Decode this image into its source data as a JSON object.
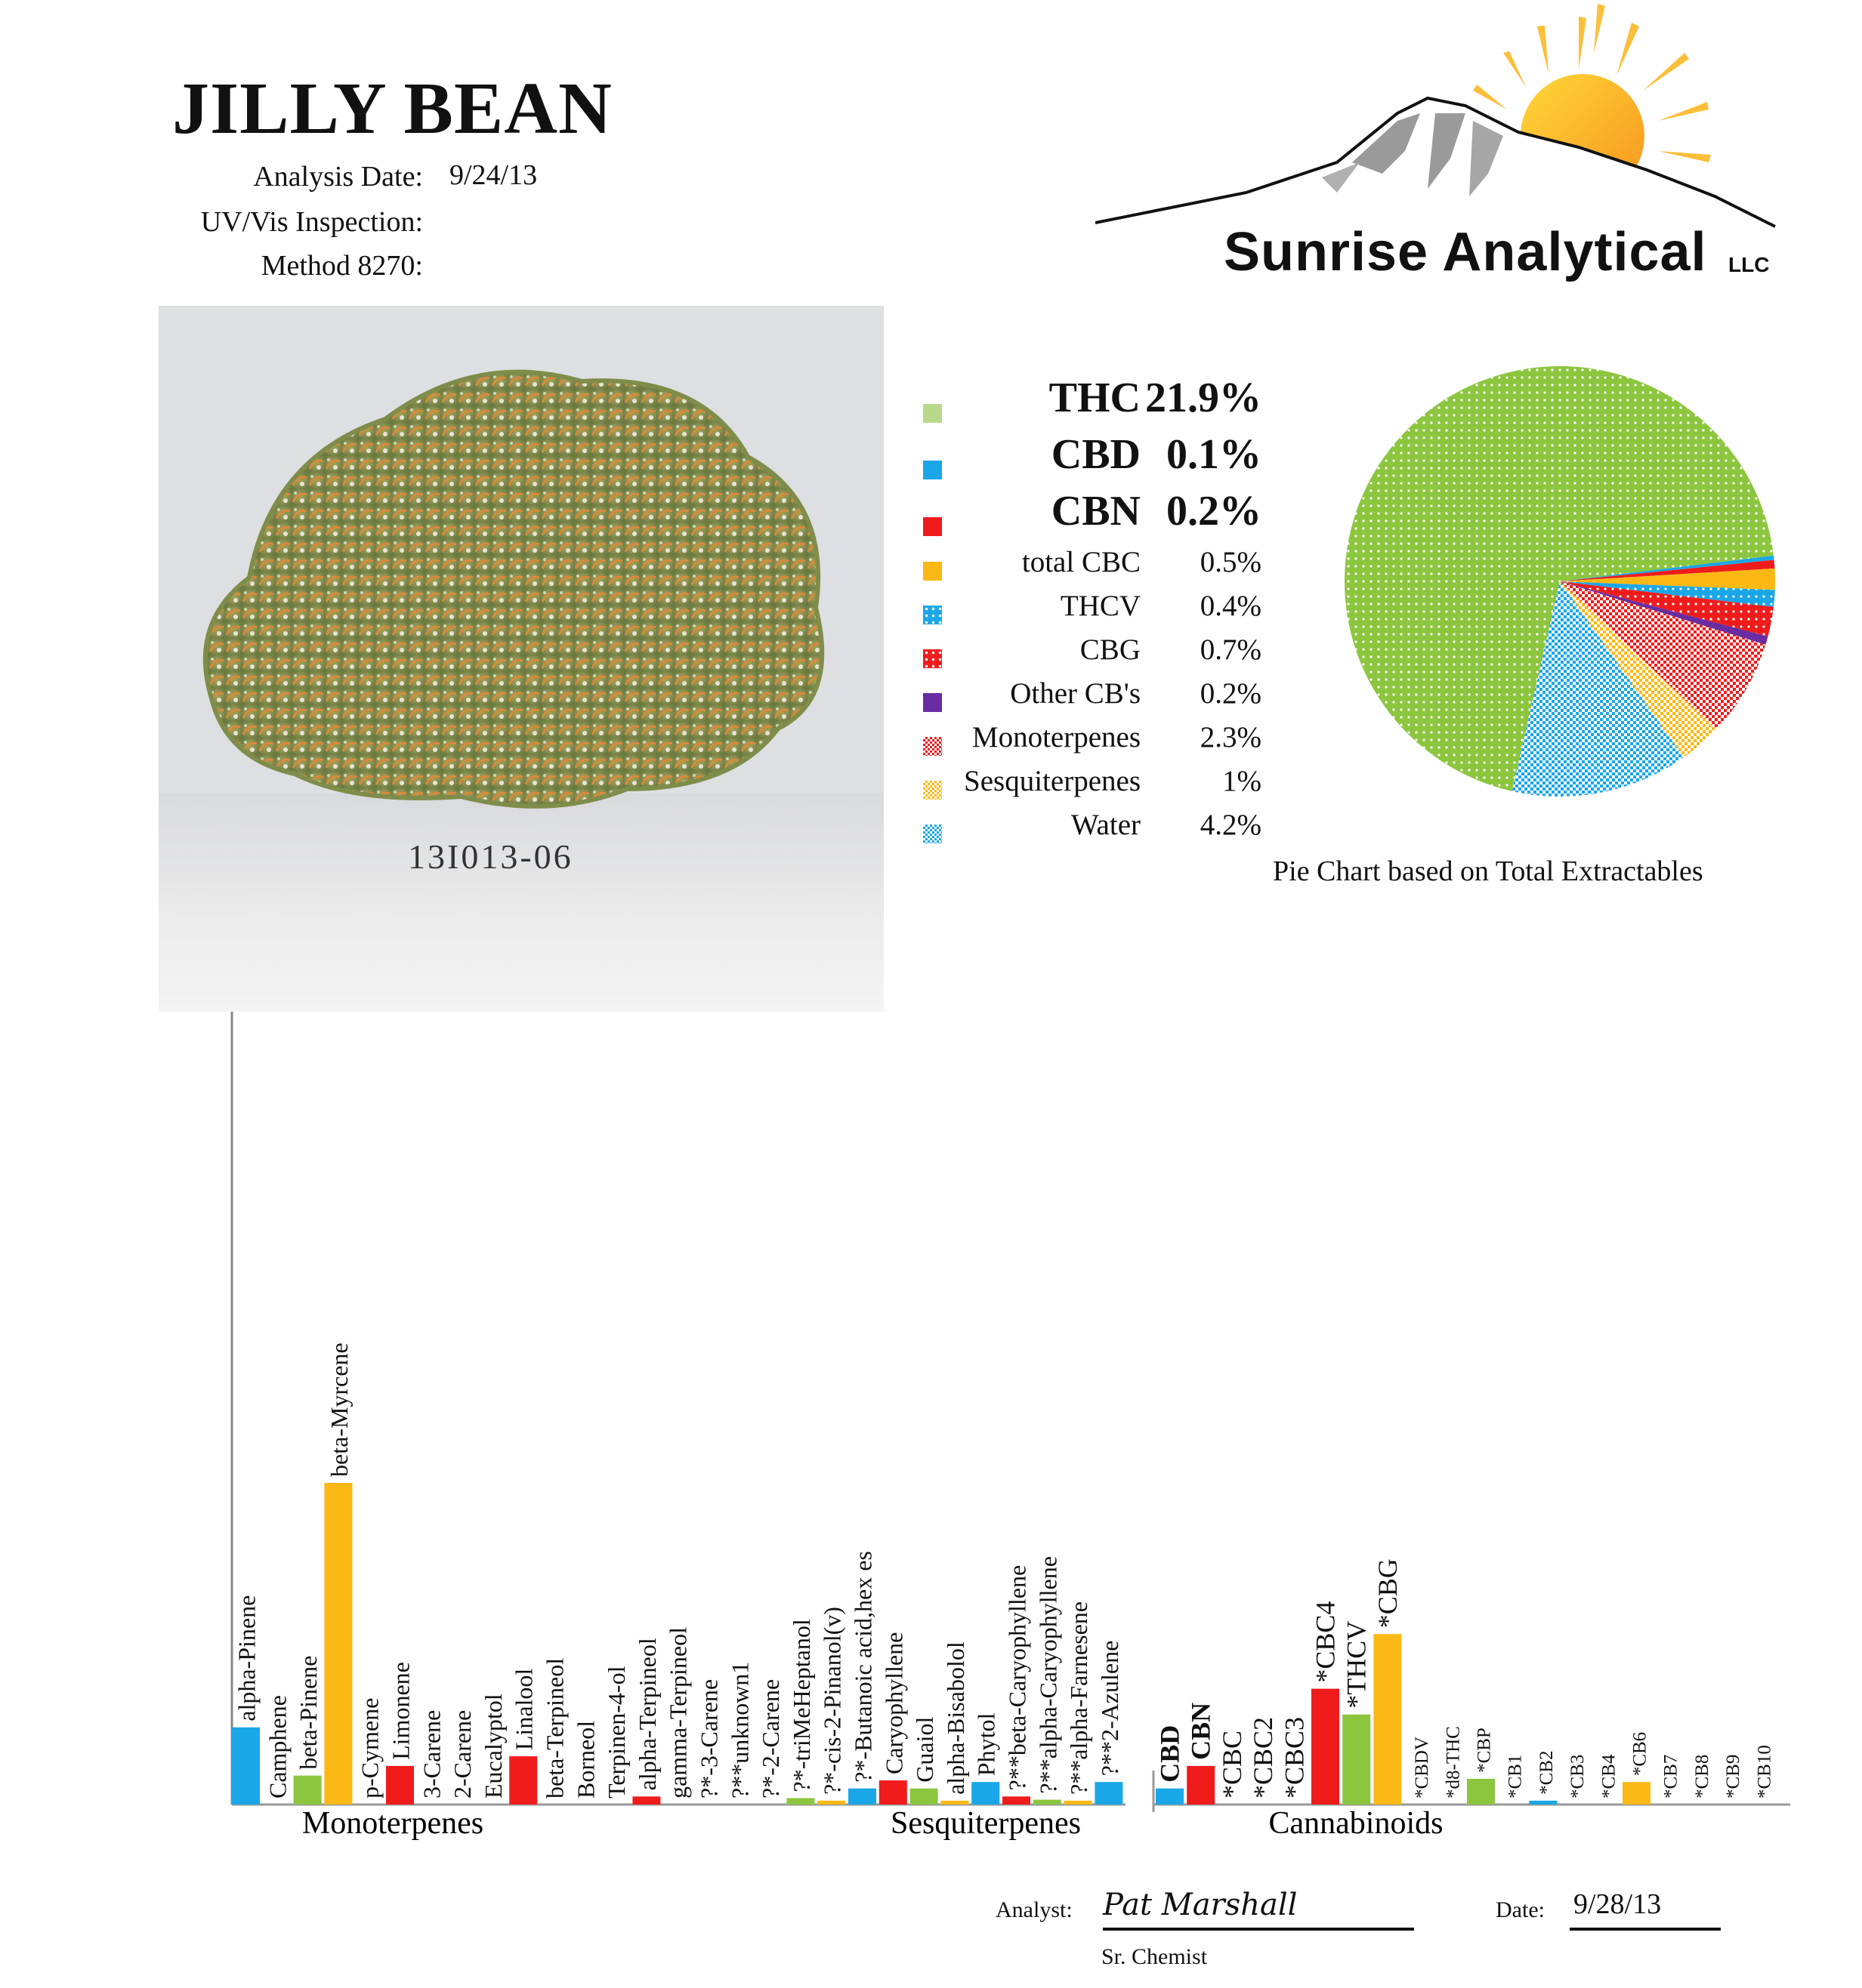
{
  "header": {
    "title": "JILLY BEAN",
    "analysis_date_label": "Analysis Date:",
    "analysis_date_value": "9/24/13",
    "uv_label": "UV/Vis Inspection:",
    "method_label": "Method 8270:"
  },
  "logo": {
    "name": "Sunrise Analytical",
    "suffix": "LLC",
    "icon": "sun-mountain-logo",
    "colors": {
      "sun": "#f9b233",
      "sun_rays": "#fbbf3a",
      "mountain": "#999999"
    }
  },
  "photo": {
    "sample_id": "13I013-06",
    "icon": "cannabis-bud-photo"
  },
  "legend": [
    {
      "name": "THC",
      "value": "21.9%",
      "size": "big",
      "color": "#b9d98a",
      "pattern": "solid"
    },
    {
      "name": "CBD",
      "value": "0.1%",
      "size": "big",
      "color": "#1aa7e8",
      "pattern": "solid"
    },
    {
      "name": "CBN",
      "value": "0.2%",
      "size": "big",
      "color": "#f01c1c",
      "pattern": "solid"
    },
    {
      "name": "total CBC",
      "value": "0.5%",
      "size": "small",
      "color": "#fcb814",
      "pattern": "solid"
    },
    {
      "name": "THCV",
      "value": "0.4%",
      "size": "small",
      "color": "#1aa7e8",
      "pattern": "dots"
    },
    {
      "name": "CBG",
      "value": "0.7%",
      "size": "small",
      "color": "#f01c1c",
      "pattern": "dots"
    },
    {
      "name": "Other CB's",
      "value": "0.2%",
      "size": "small",
      "color": "#6a2ca0",
      "pattern": "solid"
    },
    {
      "name": "Monoterpenes",
      "value": "2.3%",
      "size": "small",
      "color": "#f01c1c",
      "pattern": "checks"
    },
    {
      "name": "Sesquiterpenes",
      "value": "1%",
      "size": "small",
      "color": "#fcb814",
      "pattern": "checks"
    },
    {
      "name": "Water",
      "value": "4.2%",
      "size": "small",
      "color": "#1aa7e8",
      "pattern": "checks"
    }
  ],
  "pie": {
    "caption": "Pie Chart based on Total Extractables",
    "slices": [
      {
        "label": "THC",
        "value": 21.9,
        "color": "#8cc63f",
        "pattern": "dots"
      },
      {
        "label": "CBD",
        "value": 0.1,
        "color": "#1aa7e8",
        "pattern": "solid"
      },
      {
        "label": "CBN",
        "value": 0.2,
        "color": "#f01c1c",
        "pattern": "solid"
      },
      {
        "label": "total CBC",
        "value": 0.5,
        "color": "#fcb814",
        "pattern": "solid"
      },
      {
        "label": "THCV",
        "value": 0.4,
        "color": "#1aa7e8",
        "pattern": "dots"
      },
      {
        "label": "CBG",
        "value": 0.7,
        "color": "#f01c1c",
        "pattern": "dots"
      },
      {
        "label": "Other CB's",
        "value": 0.2,
        "color": "#6a2ca0",
        "pattern": "solid"
      },
      {
        "label": "Monoterpenes",
        "value": 2.3,
        "color": "#f01c1c",
        "pattern": "checks"
      },
      {
        "label": "Sesquiterpenes",
        "value": 1,
        "color": "#fcb814",
        "pattern": "checks"
      },
      {
        "label": "Water",
        "value": 4.2,
        "color": "#1aa7e8",
        "pattern": "checks"
      }
    ]
  },
  "chart_data": {
    "type": "bar",
    "ylim": [
      0,
      1
    ],
    "groups": [
      "Monoterpenes",
      "Sesquiterpenes",
      "Cannabinoids"
    ],
    "bars": [
      {
        "label": "alpha-Pinene",
        "value": 0.24,
        "color": "#1aa7e8"
      },
      {
        "label": "Camphene",
        "value": 0,
        "color": "#8cc63f"
      },
      {
        "label": "beta-Pinene",
        "value": 0.09,
        "color": "#8cc63f"
      },
      {
        "label": "beta-Myrcene",
        "value": 1.0,
        "color": "#fcb814"
      },
      {
        "label": "p-Cymene",
        "value": 0,
        "color": "#1aa7e8"
      },
      {
        "label": "Limonene",
        "value": 0.12,
        "color": "#f01c1c"
      },
      {
        "label": "3-Carene",
        "value": 0,
        "color": "#8cc63f"
      },
      {
        "label": "2-Carene",
        "value": 0,
        "color": "#fcb814"
      },
      {
        "label": "Eucalyptol",
        "value": 0,
        "color": "#1aa7e8"
      },
      {
        "label": "Linalool",
        "value": 0.15,
        "color": "#f01c1c"
      },
      {
        "label": "beta-Terpineol",
        "value": 0,
        "color": "#8cc63f"
      },
      {
        "label": "Borneol",
        "value": 0,
        "color": "#fcb814"
      },
      {
        "label": "Terpinen-4-ol",
        "value": 0,
        "color": "#1aa7e8"
      },
      {
        "label": "alpha-Terpineol",
        "value": 0.025,
        "color": "#f01c1c"
      },
      {
        "label": "gamma-Terpineol",
        "value": 0,
        "color": "#8cc63f"
      },
      {
        "label": "?*-3-Carene",
        "value": 0,
        "color": "#fcb814"
      },
      {
        "label": "?**unknown1",
        "value": 0,
        "color": "#1aa7e8"
      },
      {
        "label": "?*-2-Carene",
        "value": 0,
        "color": "#f01c1c"
      },
      {
        "label": "?*-triMeHeptanol",
        "value": 0.02,
        "color": "#8cc63f"
      },
      {
        "label": "?*-cis-2-Pinanol(v)",
        "value": 0.012,
        "color": "#fcb814"
      },
      {
        "label": "?*-Butanoic acid,hex es",
        "value": 0.05,
        "color": "#1aa7e8"
      },
      {
        "label": "Caryophyllene",
        "value": 0.075,
        "color": "#f01c1c"
      },
      {
        "label": "Guaiol",
        "value": 0.05,
        "color": "#8cc63f"
      },
      {
        "label": "alpha-Bisabolol",
        "value": 0.012,
        "color": "#fcb814"
      },
      {
        "label": "Phytol",
        "value": 0.07,
        "color": "#1aa7e8"
      },
      {
        "label": "?**beta-Caryophyllene",
        "value": 0.025,
        "color": "#f01c1c"
      },
      {
        "label": "?**alpha-Caryophyllene",
        "value": 0.015,
        "color": "#8cc63f"
      },
      {
        "label": "?**alpha-Farnesene",
        "value": 0.012,
        "color": "#fcb814"
      },
      {
        "label": "?**2-Azulene",
        "value": 0.07,
        "color": "#1aa7e8"
      },
      {
        "label": "CBD",
        "value": 0.05,
        "color": "#1aa7e8",
        "bold": true
      },
      {
        "label": "CBN",
        "value": 0.12,
        "color": "#f01c1c",
        "bold": true
      },
      {
        "label": "*CBC",
        "value": 0,
        "color": "#8cc63f"
      },
      {
        "label": "*CBC2",
        "value": 0,
        "color": "#fcb814"
      },
      {
        "label": "*CBC3",
        "value": 0,
        "color": "#1aa7e8"
      },
      {
        "label": "*CBC4",
        "value": 0.36,
        "color": "#f01c1c"
      },
      {
        "label": "*THCV",
        "value": 0.28,
        "color": "#8cc63f"
      },
      {
        "label": "*CBG",
        "value": 0.53,
        "color": "#fcb814"
      },
      {
        "label": "*CBDV",
        "value": 0,
        "color": "#1aa7e8"
      },
      {
        "label": "*d8-THC",
        "value": 0,
        "color": "#f01c1c"
      },
      {
        "label": "*CBP",
        "value": 0.08,
        "color": "#8cc63f"
      },
      {
        "label": "*CB1",
        "value": 0,
        "color": "#fcb814"
      },
      {
        "label": "*CB2",
        "value": 0.012,
        "color": "#1aa7e8"
      },
      {
        "label": "*CB3",
        "value": 0,
        "color": "#f01c1c"
      },
      {
        "label": "*CB4",
        "value": 0,
        "color": "#8cc63f"
      },
      {
        "label": "*CB6",
        "value": 0.07,
        "color": "#fcb814"
      },
      {
        "label": "*CB7",
        "value": 0,
        "color": "#1aa7e8"
      },
      {
        "label": "*CB8",
        "value": 0,
        "color": "#f01c1c"
      },
      {
        "label": "*CB9",
        "value": 0,
        "color": "#8cc63f"
      },
      {
        "label": "*CB10",
        "value": 0,
        "color": "#fcb814"
      }
    ]
  },
  "footer": {
    "analyst_label": "Analyst:",
    "analyst_signature": "Pat Marshall",
    "analyst_title": "Sr. Chemist",
    "date_label": "Date:",
    "date_value": "9/28/13"
  }
}
